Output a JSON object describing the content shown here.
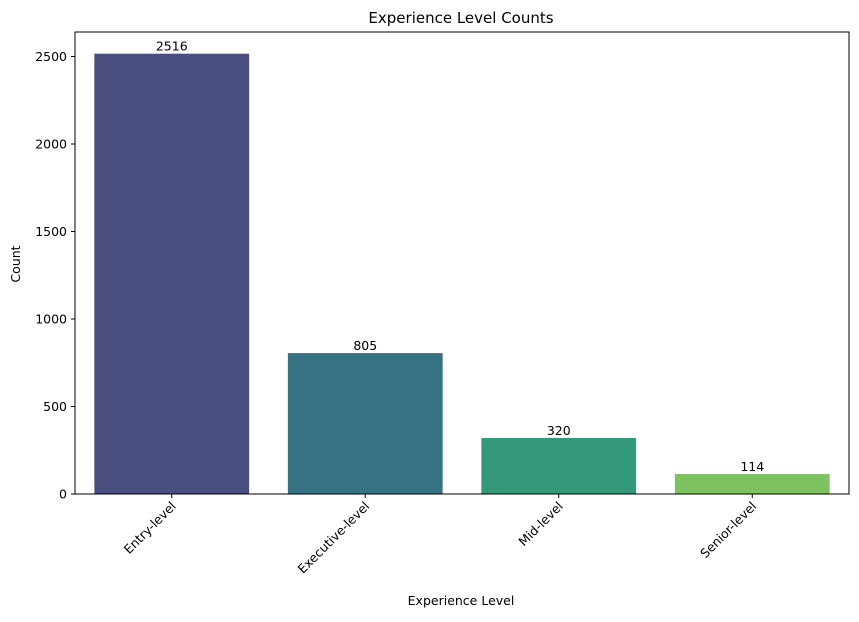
{
  "chart_data": {
    "type": "bar",
    "title": "Experience Level Counts",
    "xlabel": "Experience Level",
    "ylabel": "Count",
    "categories": [
      "Entry-level",
      "Executive-level",
      "Mid-level",
      "Senior-level"
    ],
    "values": [
      2516,
      805,
      320,
      114
    ],
    "data_labels": [
      "2516",
      "805",
      "320",
      "114"
    ],
    "colors": [
      "#482878",
      "#26828e",
      "#35b779",
      "#6ece58"
    ],
    "bar_colors_rendered": [
      "#4a4e7e",
      "#367282",
      "#33997a",
      "#7dc160"
    ],
    "ylim": [
      0,
      2640
    ],
    "yticks": [
      0,
      500,
      1000,
      1500,
      2000,
      2500
    ],
    "ytick_labels": [
      "0",
      "500",
      "1000",
      "1500",
      "2000",
      "2500"
    ],
    "xtick_rotation": 45,
    "grid": false,
    "legend": "none"
  }
}
